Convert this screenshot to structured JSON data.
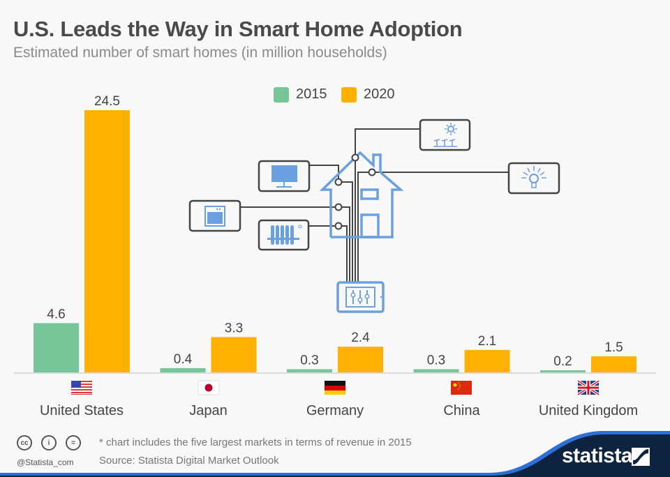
{
  "header": {
    "title": "U.S. Leads the Way in Smart Home Adoption",
    "subtitle": "Estimated number of smart homes (in million households)"
  },
  "colors": {
    "series_2015": "#76c69a",
    "series_2020": "#ffb000",
    "illustration_blue": "#6a9fe0",
    "illustration_line": "#444444",
    "brand_dark": "#0d2340",
    "brand_blue": "#2d6fd6"
  },
  "chart_data": {
    "type": "bar",
    "title": "U.S. Leads the Way in Smart Home Adoption",
    "subtitle": "Estimated number of smart homes (in million households)",
    "xlabel": "",
    "ylabel": "",
    "categories": [
      "United States",
      "Japan",
      "Germany",
      "China",
      "United Kingdom"
    ],
    "flags": [
      "us-flag-icon",
      "japan-flag-icon",
      "germany-flag-icon",
      "china-flag-icon",
      "uk-flag-icon"
    ],
    "series": [
      {
        "name": "2015",
        "values": [
          4.6,
          0.4,
          0.3,
          0.3,
          0.2
        ]
      },
      {
        "name": "2020",
        "values": [
          24.5,
          3.3,
          2.4,
          2.1,
          1.5
        ]
      }
    ],
    "ylim": [
      0,
      24.5
    ],
    "grid": false,
    "legend": "top-center",
    "data_labels": true
  },
  "illustration": {
    "devices": [
      "tv-icon",
      "oven-icon",
      "radiator-icon",
      "solar-panel-icon",
      "light-bulb-icon",
      "tablet-controller-icon"
    ]
  },
  "footer": {
    "note": "* chart includes the five largest markets in terms of revenue in 2015",
    "source": "Source: Statista Digital Market Outlook",
    "handle": "@Statista_com",
    "license_icons": [
      "cc",
      "by",
      "nd"
    ],
    "license_labels": [
      "cc",
      "i",
      "="
    ],
    "brand": "statista"
  }
}
